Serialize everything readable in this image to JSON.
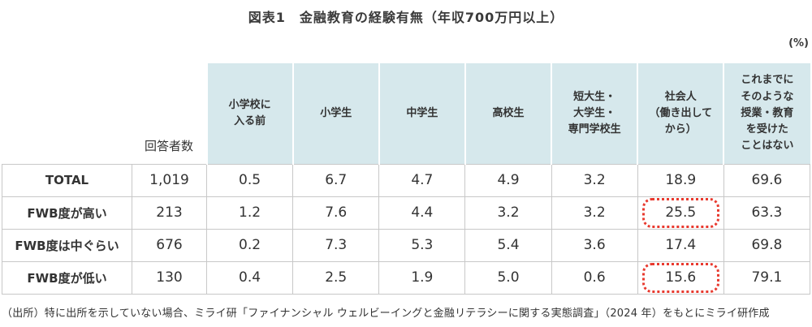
{
  "title": "図表1　金融教育の経験有無（年収700万円以上）",
  "unit_label": "(%)",
  "source_note": "（出所）特に出所を示していない場合、ミライ研「ファイナンシャル ウェルビーイングと金融リテラシーに関する実態調査」（2024 年）をもとにミライ研作成",
  "colors": {
    "header_fill": "#d6e8ec",
    "grid_line": "#c8c8c8",
    "highlight_red": "#e8392e",
    "text": "#333333",
    "title_text": "#3a3a3a"
  },
  "chart_data": {
    "type": "table",
    "title": "図表1　金融教育の経験有無（年収700万円以上）",
    "unit": "(%)",
    "row_header": "回答者数",
    "columns": [
      "小学校に\n入る前",
      "小学生",
      "中学生",
      "高校生",
      "短大生・\n大学生・\n専門学校生",
      "社会人\n（働き出して\nから）",
      "これまでに\nそのような\n授業・教育\nを受けた\nことはない"
    ],
    "rows": [
      {
        "label": "TOTAL",
        "n": "1,019",
        "values": [
          "0.5",
          "6.7",
          "4.7",
          "4.9",
          "3.2",
          "18.9",
          "69.6"
        ],
        "highlight": null
      },
      {
        "label": "FWB度が高い",
        "n": "213",
        "values": [
          "1.2",
          "7.6",
          "4.4",
          "3.2",
          "3.2",
          "25.5",
          "63.3"
        ],
        "highlight": 5
      },
      {
        "label": "FWB度は中ぐらい",
        "n": "676",
        "values": [
          "0.2",
          "7.3",
          "5.3",
          "5.4",
          "3.6",
          "17.4",
          "69.8"
        ],
        "highlight": null
      },
      {
        "label": "FWB度が低い",
        "n": "130",
        "values": [
          "0.4",
          "2.5",
          "1.9",
          "5.0",
          "0.6",
          "15.6",
          "79.1"
        ],
        "highlight": 5
      }
    ],
    "annotations": [
      "25.5（FWB度が高い × 社会人）is outlined with a red dotted box",
      "15.6（FWB度が低い × 社会人）is outlined with a red dotted box"
    ]
  }
}
